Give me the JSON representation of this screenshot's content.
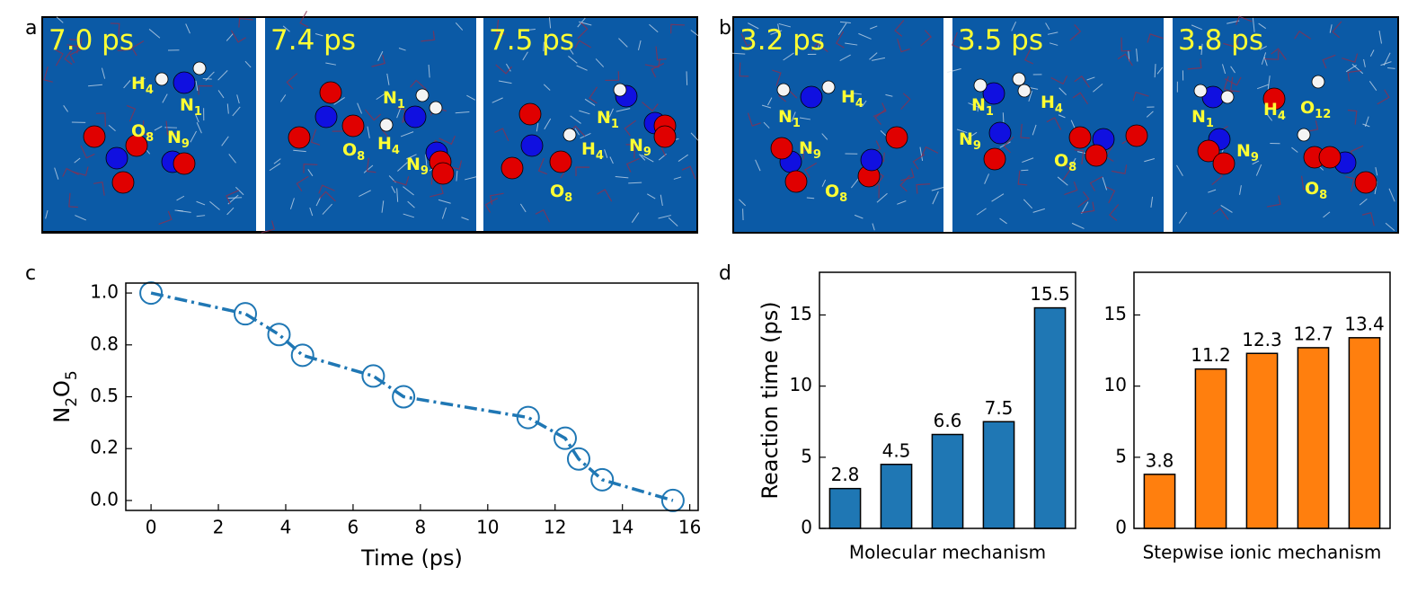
{
  "snapshot_panels": [
    {
      "label": "a",
      "frames": [
        {
          "time": "7.0 ps",
          "atom_labels": [
            "H4",
            "N1",
            "O8",
            "N9"
          ]
        },
        {
          "time": "7.4 ps",
          "atom_labels": [
            "N1",
            "O8",
            "H4",
            "N9"
          ]
        },
        {
          "time": "7.5 ps",
          "atom_labels": [
            "N1",
            "H4",
            "N9",
            "O8"
          ]
        }
      ]
    },
    {
      "label": "b",
      "frames": [
        {
          "time": "3.2 ps",
          "atom_labels": [
            "H4",
            "N1",
            "N9",
            "O8"
          ]
        },
        {
          "time": "3.5 ps",
          "atom_labels": [
            "N1",
            "H4",
            "N9",
            "O8"
          ]
        },
        {
          "time": "3.8 ps",
          "atom_labels": [
            "N1",
            "H4",
            "O12",
            "N9",
            "O8"
          ]
        }
      ]
    }
  ],
  "chart_data": [
    {
      "type": "line",
      "panel_label": "c",
      "x": [
        0,
        2.8,
        3.8,
        4.5,
        6.6,
        7.5,
        11.2,
        12.3,
        12.7,
        13.4,
        15.5
      ],
      "values": [
        1.0,
        0.9,
        0.8,
        0.7,
        0.6,
        0.5,
        0.4,
        0.3,
        0.2,
        0.1,
        0.0
      ],
      "color": "#1f77b4",
      "line_style": "dashdot",
      "marker": "open-circle",
      "xlabel": "Time (ps)",
      "ylabel": "N2O5",
      "xlim": [
        -0.75,
        16.25
      ],
      "ylim": [
        -0.048,
        1.048
      ],
      "xticks": [
        0,
        2,
        4,
        6,
        8,
        10,
        12,
        14,
        16
      ],
      "yticks": [
        {
          "value": 0,
          "label": "0.0"
        },
        {
          "value": 0.25,
          "label": "0.2"
        },
        {
          "value": 0.5,
          "label": "0.5"
        },
        {
          "value": 0.75,
          "label": "0.8"
        },
        {
          "value": 1,
          "label": "1.0"
        }
      ]
    },
    {
      "type": "bar",
      "panel_label": "d",
      "categories": [
        null,
        null,
        null,
        null,
        null
      ],
      "values": [
        2.8,
        4.5,
        6.6,
        7.5,
        15.5
      ],
      "color": "#1f77b4",
      "xlabel": "Molecular mechanism",
      "ylabel": "Reaction time (ps)",
      "ylim": [
        0,
        18
      ],
      "yticks": [
        0,
        5,
        10,
        15
      ]
    },
    {
      "type": "bar",
      "categories": [
        null,
        null,
        null,
        null,
        null
      ],
      "values": [
        3.8,
        11.2,
        12.3,
        12.7,
        13.4
      ],
      "color": "#ff7f0e",
      "xlabel": "Stepwise ionic mechanism",
      "ylim": [
        0,
        18
      ],
      "yticks": [
        0,
        5,
        10,
        15
      ]
    }
  ]
}
